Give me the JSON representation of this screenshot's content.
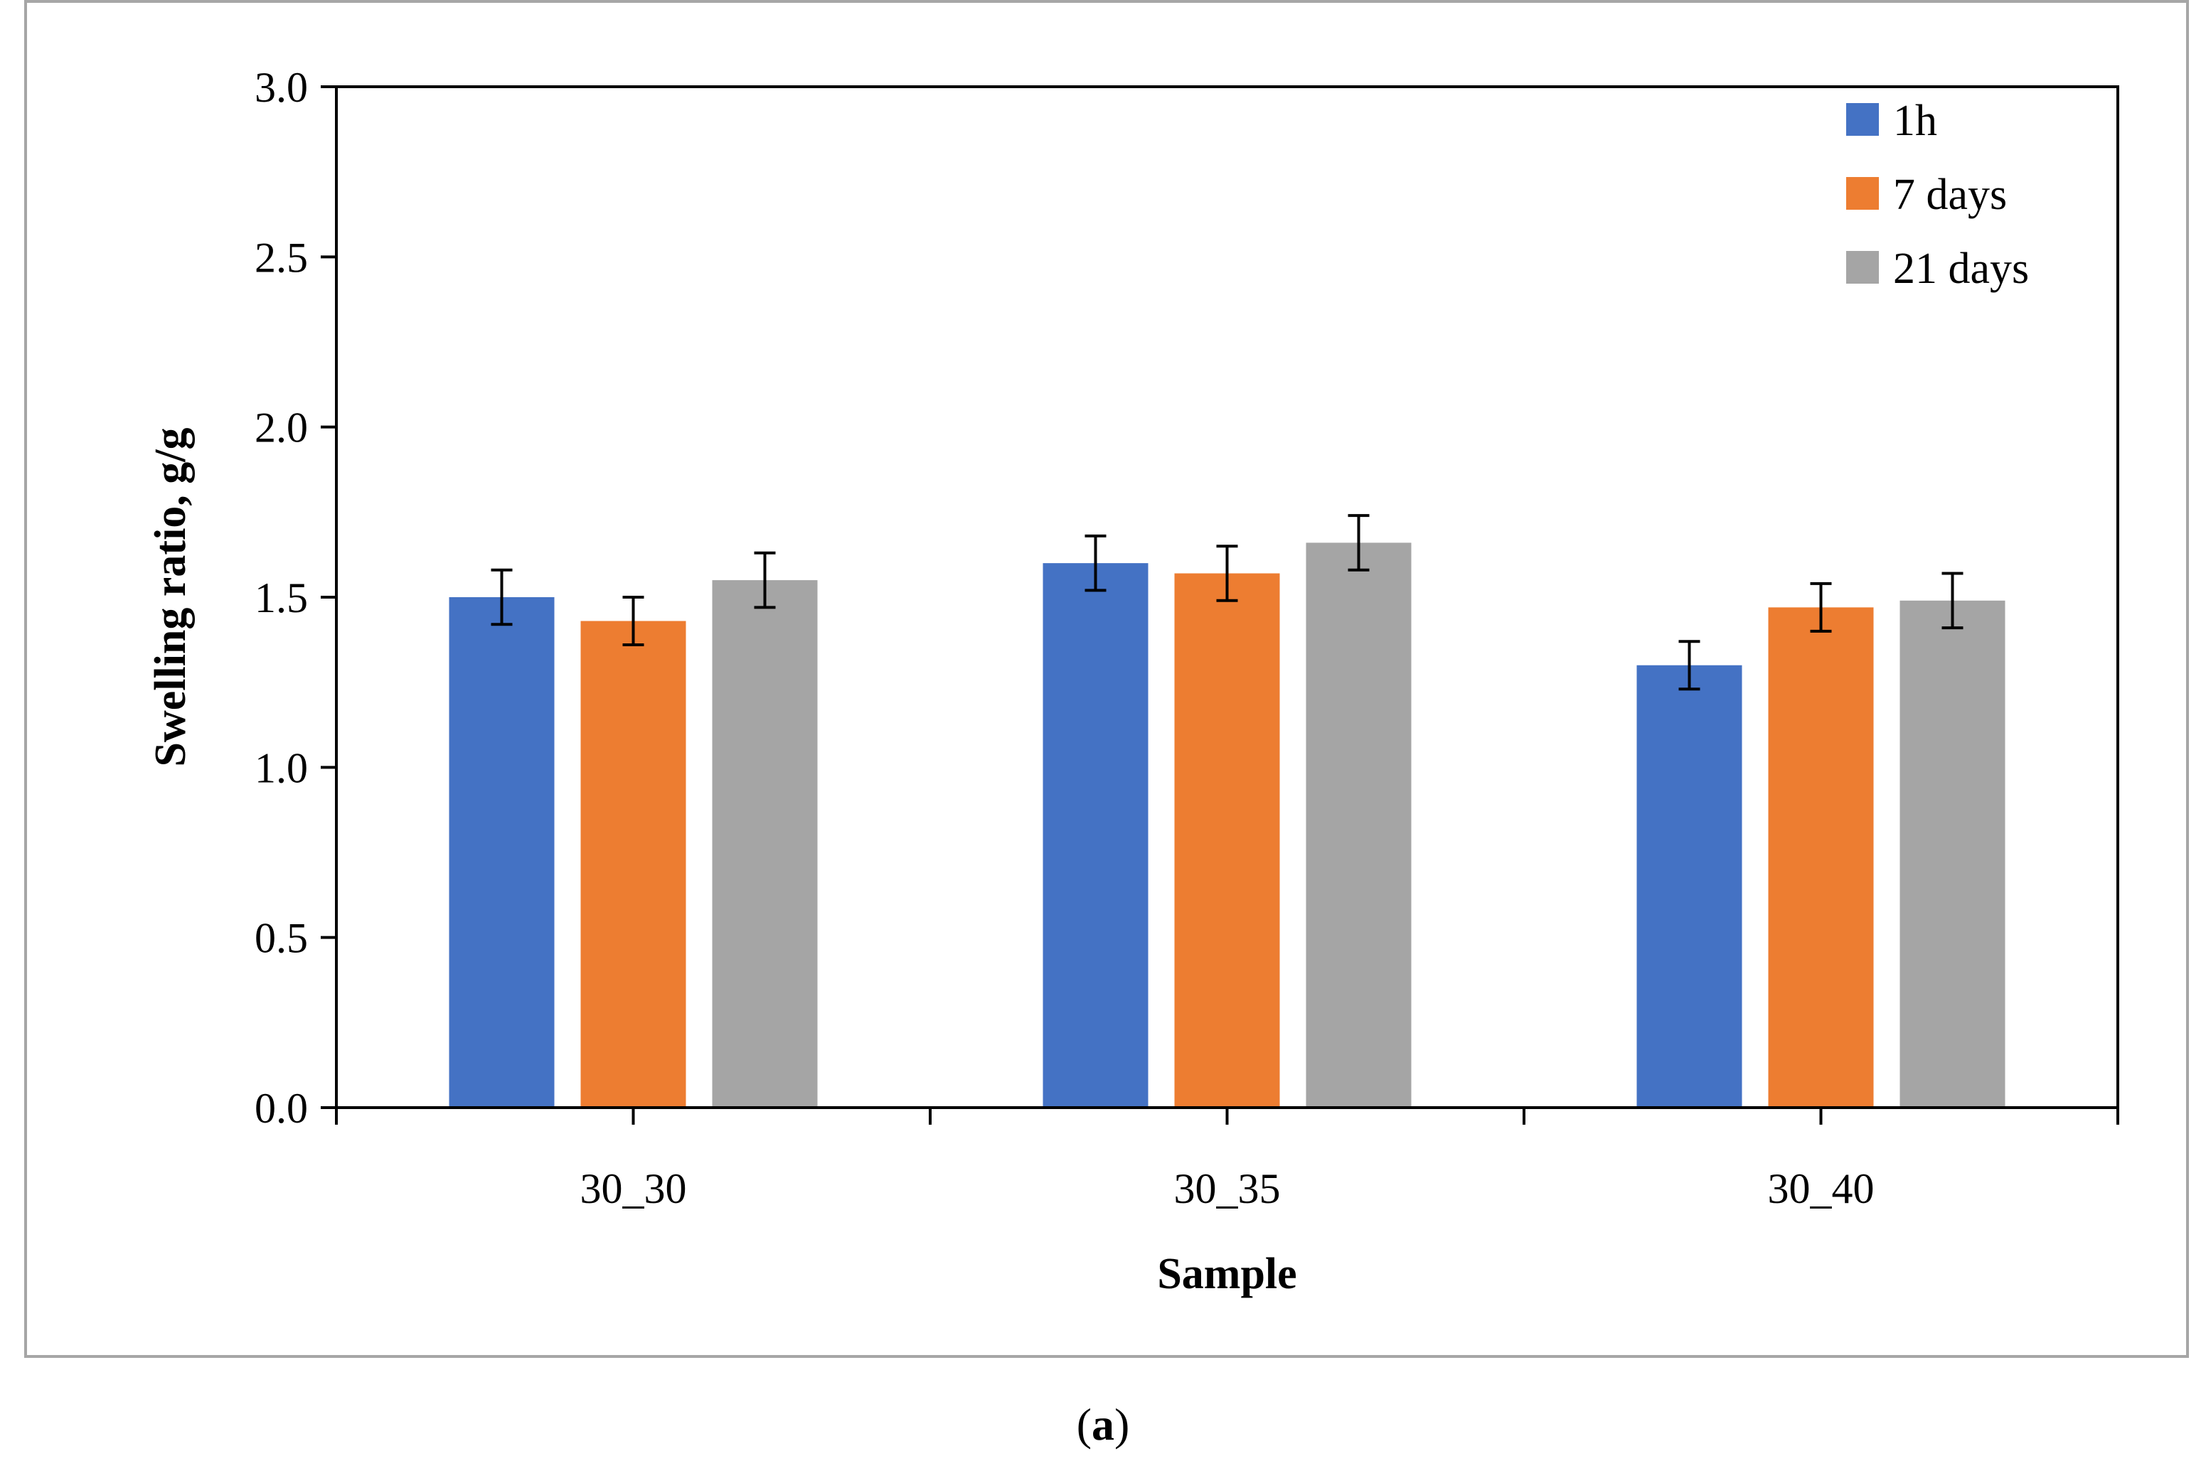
{
  "chart_data": {
    "type": "bar",
    "title": "",
    "xlabel": "Sample",
    "ylabel": "Swelling ratio, g/g",
    "ylim": [
      0,
      3.0
    ],
    "yticks": [
      "0.0",
      "0.5",
      "1.0",
      "1.5",
      "2.0",
      "2.5",
      "3.0"
    ],
    "categories": [
      "30_30",
      "30_35",
      "30_40"
    ],
    "legend_position": "top-right",
    "grid": false,
    "series": [
      {
        "name": "1h",
        "color": "#4472c4",
        "values": [
          1.5,
          1.6,
          1.3
        ],
        "errors": [
          0.08,
          0.08,
          0.07
        ]
      },
      {
        "name": "7 days",
        "color": "#ed7d31",
        "values": [
          1.43,
          1.57,
          1.47
        ],
        "errors": [
          0.07,
          0.08,
          0.07
        ]
      },
      {
        "name": "21 days",
        "color": "#a5a5a5",
        "values": [
          1.55,
          1.66,
          1.49
        ],
        "errors": [
          0.08,
          0.08,
          0.08
        ]
      }
    ]
  },
  "caption": {
    "open": "(",
    "letter": "a",
    "close": ")"
  }
}
